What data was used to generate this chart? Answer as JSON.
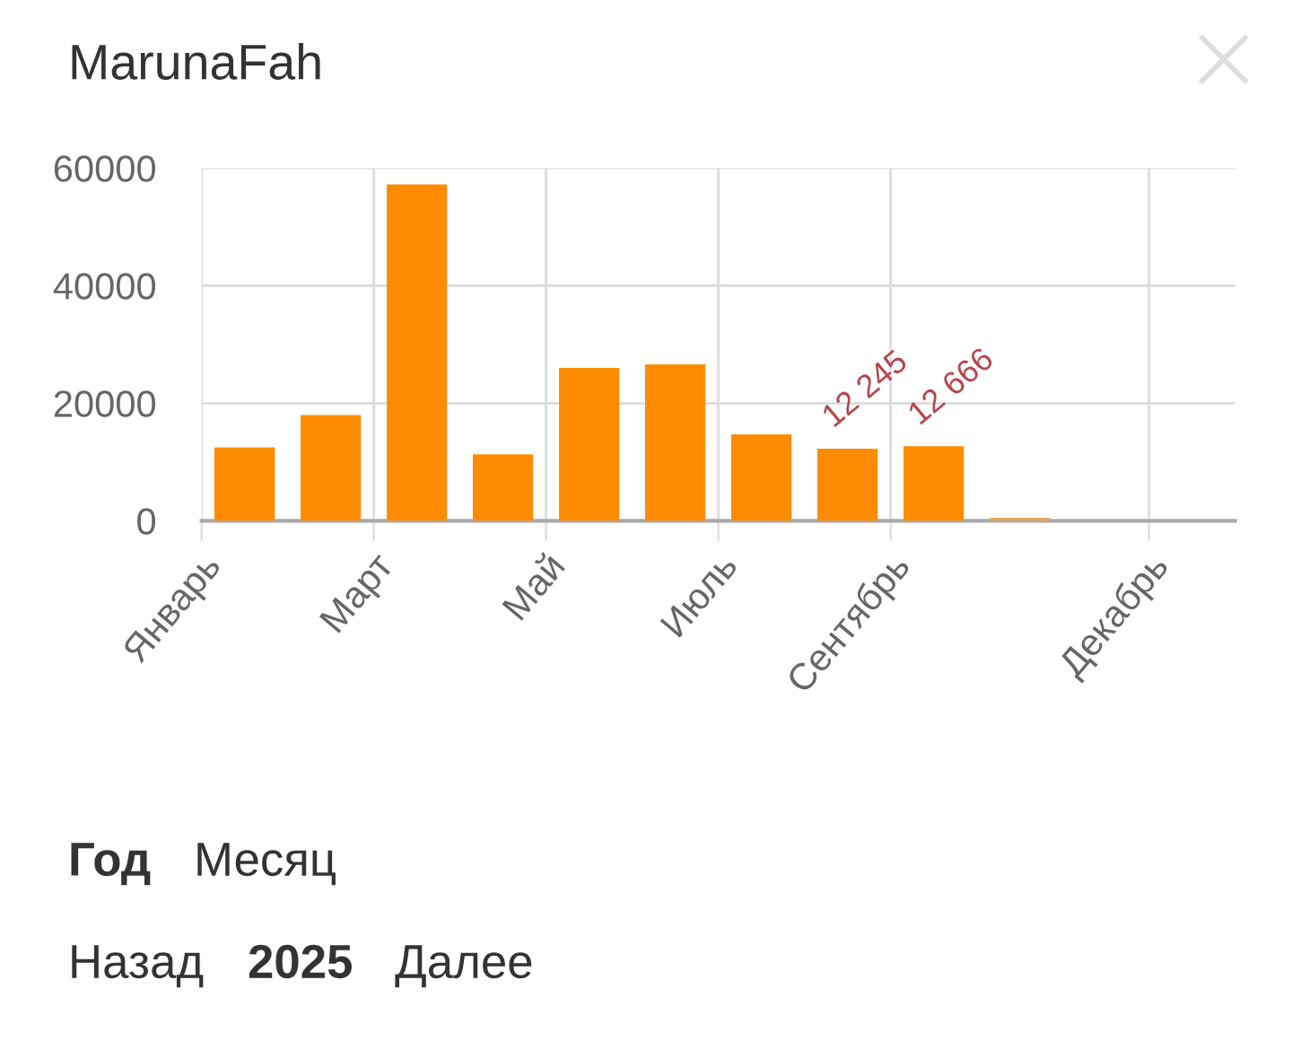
{
  "chart_data": {
    "type": "bar",
    "title": "MarunaFah",
    "categories": [
      "Январь",
      null,
      "Март",
      null,
      "Май",
      null,
      "Июль",
      null,
      "Сентябрь",
      null,
      null,
      "Декабрь"
    ],
    "series": [
      {
        "colors": [
          "#ff8c00",
          "#ff8c00",
          "#ff8c00",
          "#ff8c00",
          "#ff8c00",
          "#ff8c00",
          "#ff8c00",
          "#ff8c00",
          "#ff8c00",
          "#e8a55c",
          null,
          null
        ],
        "values": [
          12500,
          18000,
          57200,
          11300,
          26000,
          26600,
          14700,
          12245,
          12666,
          500,
          null,
          null
        ],
        "value_labels": [
          null,
          null,
          null,
          null,
          null,
          null,
          null,
          "12 245",
          "12 666",
          null,
          null,
          null
        ]
      }
    ],
    "ylim": [
      0,
      60000
    ],
    "yticks": [
      0,
      20000,
      40000,
      60000
    ],
    "grid": true,
    "annotations": [
      "Год",
      "Месяц",
      "Назад",
      "2025",
      "Далее"
    ]
  }
}
